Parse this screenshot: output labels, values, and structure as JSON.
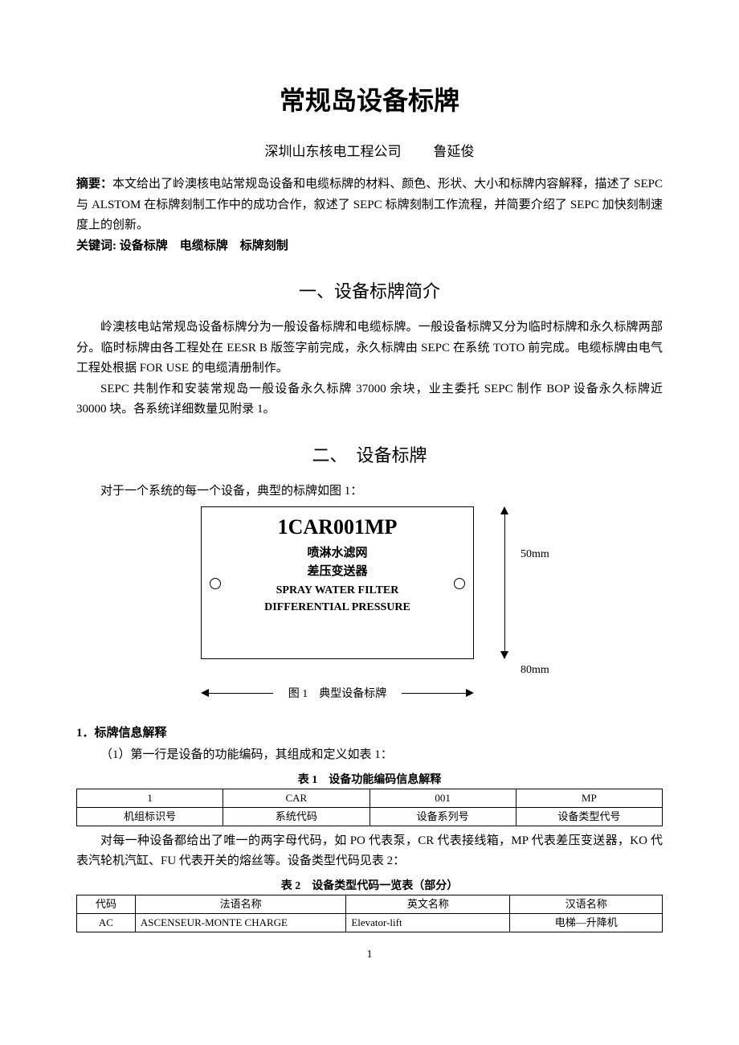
{
  "title": "常规岛设备标牌",
  "author_org": "深圳山东核电工程公司",
  "author_name": "鲁延俊",
  "abstract_label": "摘要：",
  "abstract_text": "本文给出了岭澳核电站常规岛设备和电缆标牌的材料、颜色、形状、大小和标牌内容解释，描述了 SEPC 与 ALSTOM 在标牌刻制工作中的成功合作，叙述了 SEPC 标牌刻制工作流程，并简要介绍了 SEPC 加快刻制速度上的创新。",
  "keywords_label": "关键词:",
  "keywords_text": "设备标牌　电缆标牌　标牌刻制",
  "section1_heading": "一、设备标牌简介",
  "section1_p1": "岭澳核电站常规岛设备标牌分为一般设备标牌和电缆标牌。一般设备标牌又分为临时标牌和永久标牌两部分。临时标牌由各工程处在 EESR B 版签字前完成，永久标牌由 SEPC 在系统 TOTO 前完成。电缆标牌由电气工程处根据 FOR USE 的电缆清册制作。",
  "section1_p2": "SEPC 共制作和安装常规岛一般设备永久标牌 37000 余块，业主委托 SEPC 制作 BOP 设备永久标牌近 30000 块。各系统详细数量见附录 1。",
  "section2_heading": "二、　设备标牌",
  "section2_intro": "对于一个系统的每一个设备，典型的标牌如图 1：",
  "figure": {
    "code": "1CAR001MP",
    "cn_line1": "喷淋水滤网",
    "cn_line2": "差压变送器",
    "en_line1": "SPRAY WATER FILTER",
    "en_line2": "DIFFERENTIAL PRESSURE",
    "dim_height": "50mm",
    "dim_width": "80mm",
    "caption": "图 1　典型设备标牌"
  },
  "sub1_heading": "1．标牌信息解释",
  "sub1_p1": "（1）第一行是设备的功能编码，其组成和定义如表 1：",
  "table1": {
    "caption": "表 1　设备功能编码信息解释",
    "row1": [
      "1",
      "CAR",
      "001",
      "MP"
    ],
    "row2": [
      "机组标识号",
      "系统代码",
      "设备系列号",
      "设备类型代号"
    ]
  },
  "sub1_p2": "对每一种设备都给出了唯一的两字母代码，如 PO 代表泵，CR 代表接线箱，MP 代表差压变送器，KO 代表汽轮机汽缸、FU 代表开关的熔丝等。设备类型代码见表 2：",
  "table2": {
    "caption": "表 2　设备类型代码一览表（部分）",
    "header": [
      "代码",
      "法语名称",
      "英文名称",
      "汉语名称"
    ],
    "row1": [
      "AC",
      "ASCENSEUR-MONTE CHARGE",
      "Elevator-lift",
      "电梯—升降机"
    ],
    "col_widths": [
      "10%",
      "36%",
      "28%",
      "26%"
    ]
  },
  "page_number": "1"
}
